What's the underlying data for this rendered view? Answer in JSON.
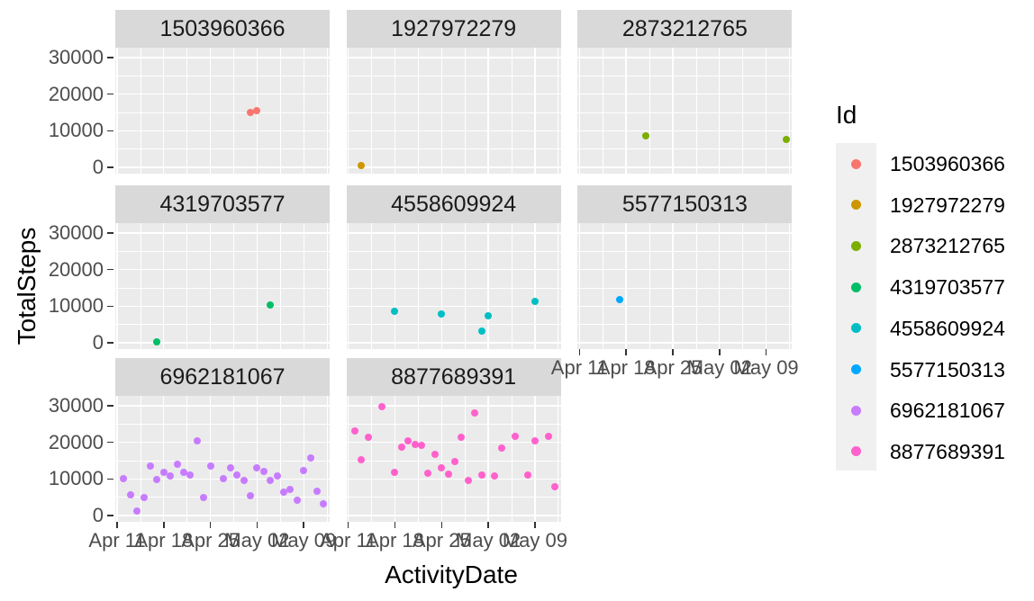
{
  "chart_data": {
    "type": "scatter",
    "title": "",
    "xlabel": "ActivityDate",
    "ylabel": "TotalSteps",
    "facet_variable": "Id",
    "grid": true,
    "legend_position": "right",
    "x_tick_labels": [
      "Apr 11",
      "Apr 18",
      "Apr 25",
      "May 02",
      "May 09"
    ],
    "y_tick_values": [
      0,
      10000,
      20000,
      30000
    ],
    "y_minor_values": [
      5000,
      15000,
      25000
    ],
    "ylim": [
      -1700,
      32700
    ],
    "x_range": [
      "Apr 11",
      "May 13"
    ],
    "legend": {
      "title": "Id"
    },
    "colors": {
      "panel_background": "#EBEBEB",
      "strip_background": "#D9D9D9",
      "legend_key_background": "#F0F0F0",
      "gridline": "#FFFFFF",
      "tick_text": "#4D4D4D",
      "tick_mark": "#333333"
    },
    "facets": [
      {
        "id": "1503960366",
        "color": "#F8766D",
        "points": [
          [
            "May 01",
            14900
          ],
          [
            "May 02",
            15500
          ]
        ]
      },
      {
        "id": "1927972279",
        "color": "#CD9600",
        "points": [
          [
            "Apr 13",
            500
          ]
        ]
      },
      {
        "id": "2873212765",
        "color": "#7CAE00",
        "points": [
          [
            "Apr 21",
            8700
          ],
          [
            "May 12",
            7700
          ]
        ]
      },
      {
        "id": "4319703577",
        "color": "#00BE67",
        "points": [
          [
            "Apr 17",
            300
          ],
          [
            "May 04",
            10400
          ]
        ]
      },
      {
        "id": "4558609924",
        "color": "#00BFC4",
        "points": [
          [
            "Apr 18",
            8500
          ],
          [
            "Apr 25",
            7800
          ],
          [
            "May 01",
            3100
          ],
          [
            "May 02",
            7400
          ],
          [
            "May 09",
            11200
          ]
        ]
      },
      {
        "id": "5577150313",
        "color": "#00A9FF",
        "points": [
          [
            "Apr 17",
            11800
          ]
        ]
      },
      {
        "id": "6962181067",
        "color": "#C77CFF",
        "points": [
          [
            "Apr 12",
            10100
          ],
          [
            "Apr 13",
            5600
          ],
          [
            "Apr 14",
            1200
          ],
          [
            "Apr 15",
            5000
          ],
          [
            "Apr 16",
            13500
          ],
          [
            "Apr 17",
            9900
          ],
          [
            "Apr 18",
            11700
          ],
          [
            "Apr 19",
            10900
          ],
          [
            "Apr 20",
            14000
          ],
          [
            "Apr 21",
            11900
          ],
          [
            "Apr 22",
            11000
          ],
          [
            "Apr 23",
            20300
          ],
          [
            "Apr 24",
            5000
          ],
          [
            "Apr 25",
            13500
          ],
          [
            "Apr 27",
            10000
          ],
          [
            "Apr 28",
            13100
          ],
          [
            "Apr 29",
            11100
          ],
          [
            "Apr 30",
            9700
          ],
          [
            "May 01",
            5400
          ],
          [
            "May 02",
            12900
          ],
          [
            "May 03",
            12100
          ],
          [
            "May 04",
            9700
          ],
          [
            "May 05",
            10700
          ],
          [
            "May 06",
            6400
          ],
          [
            "May 07",
            7200
          ],
          [
            "May 08",
            4100
          ],
          [
            "May 09",
            12400
          ],
          [
            "May 10",
            15800
          ],
          [
            "May 11",
            6700
          ],
          [
            "May 12",
            3100
          ]
        ]
      },
      {
        "id": "8877689391",
        "color": "#FF61CC",
        "points": [
          [
            "Apr 12",
            23200
          ],
          [
            "Apr 13",
            15300
          ],
          [
            "Apr 14",
            21300
          ],
          [
            "Apr 16",
            29700
          ],
          [
            "Apr 18",
            11700
          ],
          [
            "Apr 19",
            18700
          ],
          [
            "Apr 20",
            20300
          ],
          [
            "Apr 21",
            19500
          ],
          [
            "Apr 22",
            19100
          ],
          [
            "Apr 23",
            11500
          ],
          [
            "Apr 24",
            16700
          ],
          [
            "Apr 25",
            13000
          ],
          [
            "Apr 26",
            11300
          ],
          [
            "Apr 27",
            14800
          ],
          [
            "Apr 28",
            21300
          ],
          [
            "Apr 29",
            9700
          ],
          [
            "Apr 30",
            28000
          ],
          [
            "May 01",
            11100
          ],
          [
            "May 03",
            10700
          ],
          [
            "May 04",
            18500
          ],
          [
            "May 06",
            21700
          ],
          [
            "May 08",
            11100
          ],
          [
            "May 09",
            20300
          ],
          [
            "May 11",
            21700
          ],
          [
            "May 12",
            7800
          ]
        ]
      }
    ]
  }
}
